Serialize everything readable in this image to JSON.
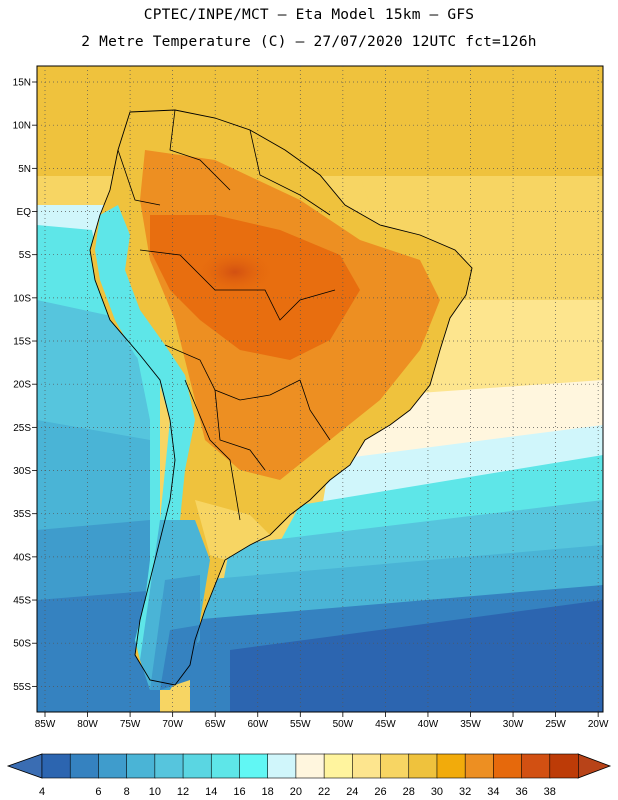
{
  "header": {
    "line1": "CPTEC/INPE/MCT –  Eta Model 15km – GFS",
    "line2": "2 Metre Temperature (C) – 27/07/2020 12UTC fct=126h"
  },
  "map": {
    "lat_labels": [
      "15N",
      "10N",
      "5N",
      "EQ",
      "5S",
      "10S",
      "15S",
      "20S",
      "25S",
      "30S",
      "35S",
      "40S",
      "45S",
      "50S",
      "55S"
    ],
    "lon_labels": [
      "85W",
      "80W",
      "75W",
      "70W",
      "65W",
      "60W",
      "55W",
      "50W",
      "45W",
      "40W",
      "35W",
      "30W",
      "25W",
      "20W"
    ]
  },
  "colorbar": {
    "labels": [
      "4",
      "6",
      "8",
      "10",
      "12",
      "14",
      "16",
      "18",
      "20",
      "22",
      "24",
      "26",
      "28",
      "30",
      "32",
      "34",
      "36",
      "38"
    ],
    "colors": [
      "#2c65b0",
      "#3582c0",
      "#3f9ccc",
      "#4ab4d6",
      "#56c5dd",
      "#5ad6e2",
      "#5ee6e8",
      "#61f7f4",
      "#d0f6fb",
      "#fff6de",
      "#fff49e",
      "#fde58e",
      "#f7d563",
      "#efc23d",
      "#f2ab0b",
      "#ed8f22",
      "#e6690c",
      "#d25012",
      "#bd3b07"
    ],
    "low_arrow_color": "#3a6db3",
    "high_arrow_color": "#b84318"
  }
}
